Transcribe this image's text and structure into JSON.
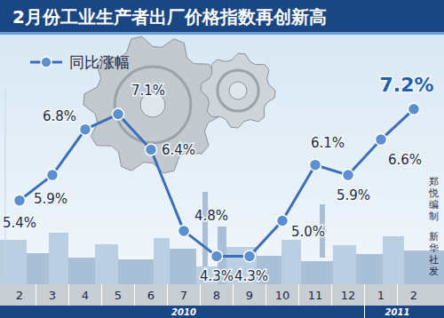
{
  "chart_data": {
    "type": "line",
    "title": "2月份工业生产者出厂价格指数再创新高",
    "categories": [
      "2",
      "3",
      "4",
      "5",
      "6",
      "7",
      "8",
      "9",
      "10",
      "11",
      "12",
      "1",
      "2"
    ],
    "series": [
      {
        "name": "同比涨幅",
        "color": "#3a6fb8",
        "marker": "circle",
        "line_style": "solid",
        "values": [
          5.4,
          5.9,
          6.8,
          7.1,
          6.4,
          4.8,
          4.3,
          4.3,
          5.0,
          6.1,
          5.9,
          6.6,
          7.2
        ],
        "value_labels": [
          "5.4%",
          "5.9%",
          "6.8%",
          "7.1%",
          "6.4%",
          "4.8%",
          "4.3%",
          "4.3%",
          "5.0%",
          "6.1%",
          "5.9%",
          "6.6%",
          "7.2%"
        ]
      }
    ],
    "x_groups": [
      {
        "label": "2010",
        "start": 0
      },
      {
        "label": "2011",
        "start": 11
      }
    ],
    "credit": [
      "郑悦编制",
      "新华社发"
    ],
    "ylim": [
      3.8,
      7.6
    ],
    "data_labels": true,
    "tick_labels": "x",
    "grid": false,
    "legend": "top-left"
  }
}
